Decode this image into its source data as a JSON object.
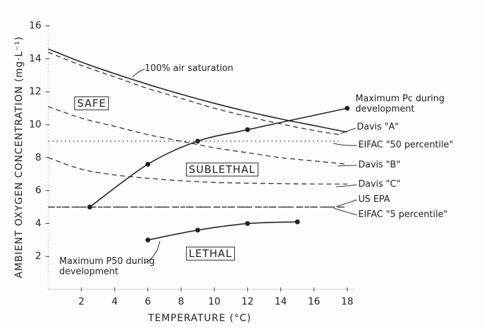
{
  "chart_data": {
    "type": "line",
    "x_label": "TEMPERATURE (°C)",
    "y_label": "AMBIENT OXYGEN CONCENTRATION (mg·L⁻¹)",
    "xlim": [
      0,
      18.5
    ],
    "ylim": [
      0,
      16
    ],
    "xticks": [
      2,
      4,
      6,
      8,
      10,
      12,
      14,
      16,
      18
    ],
    "yticks": [
      2,
      4,
      6,
      8,
      10,
      12,
      14,
      16
    ],
    "region_labels": [
      "SAFE",
      "SUBLETHAL",
      "LETHAL"
    ],
    "series": [
      {
        "name": "100% air saturation",
        "color": "#222222",
        "style": "solid",
        "marker": false,
        "x": [
          0,
          2,
          4,
          6,
          8,
          10,
          12,
          14,
          16,
          18
        ],
        "values": [
          14.6,
          13.8,
          13.1,
          12.45,
          11.85,
          11.3,
          10.8,
          10.35,
          9.95,
          9.55
        ]
      },
      {
        "name": "Davis \"A\"",
        "color": "#222222",
        "style": "dashed",
        "marker": false,
        "x": [
          0,
          2,
          4,
          6,
          8,
          10,
          12,
          14,
          16,
          17.5
        ],
        "values": [
          14.4,
          13.6,
          12.9,
          12.2,
          11.6,
          11.0,
          10.5,
          10.05,
          9.65,
          9.4
        ]
      },
      {
        "name": "Maximum Pc during development",
        "color": "#222222",
        "style": "solid",
        "marker": true,
        "x": [
          2.5,
          6,
          9,
          12,
          18
        ],
        "values": [
          5.0,
          7.6,
          9.0,
          9.7,
          11.0
        ]
      },
      {
        "name": "EIFAC \"50 percentile\"",
        "color": "#555555",
        "style": "dotted",
        "marker": false,
        "x": [
          0,
          17.5
        ],
        "values": [
          9,
          9
        ]
      },
      {
        "name": "Davis \"B\"",
        "color": "#222222",
        "style": "dashed",
        "marker": false,
        "x": [
          0,
          2,
          4,
          6,
          8,
          10,
          12,
          14,
          16,
          18
        ],
        "values": [
          11.1,
          10.4,
          9.9,
          9.4,
          9.0,
          8.6,
          8.3,
          8.0,
          7.8,
          7.6
        ]
      },
      {
        "name": "Davis \"C\"",
        "color": "#222222",
        "style": "dashed",
        "marker": false,
        "x": [
          0,
          2,
          4,
          6,
          8,
          10,
          12,
          14,
          16,
          18
        ],
        "values": [
          8.0,
          7.3,
          6.95,
          6.75,
          6.6,
          6.5,
          6.45,
          6.42,
          6.4,
          6.4
        ]
      },
      {
        "name": "US EPA",
        "color": "#222222",
        "style": "dashdot",
        "marker": false,
        "x": [
          0,
          18
        ],
        "values": [
          5,
          5
        ]
      },
      {
        "name": "EIFAC \"5 percentile\"",
        "color": "#222222",
        "style": "dashed",
        "marker": false,
        "x": [
          0,
          17.5
        ],
        "values": [
          5,
          5
        ]
      },
      {
        "name": "Maximum P50 during development",
        "color": "#222222",
        "style": "solid",
        "marker": true,
        "x": [
          6,
          9,
          12,
          15
        ],
        "values": [
          3.0,
          3.6,
          4.0,
          4.1
        ]
      }
    ]
  }
}
